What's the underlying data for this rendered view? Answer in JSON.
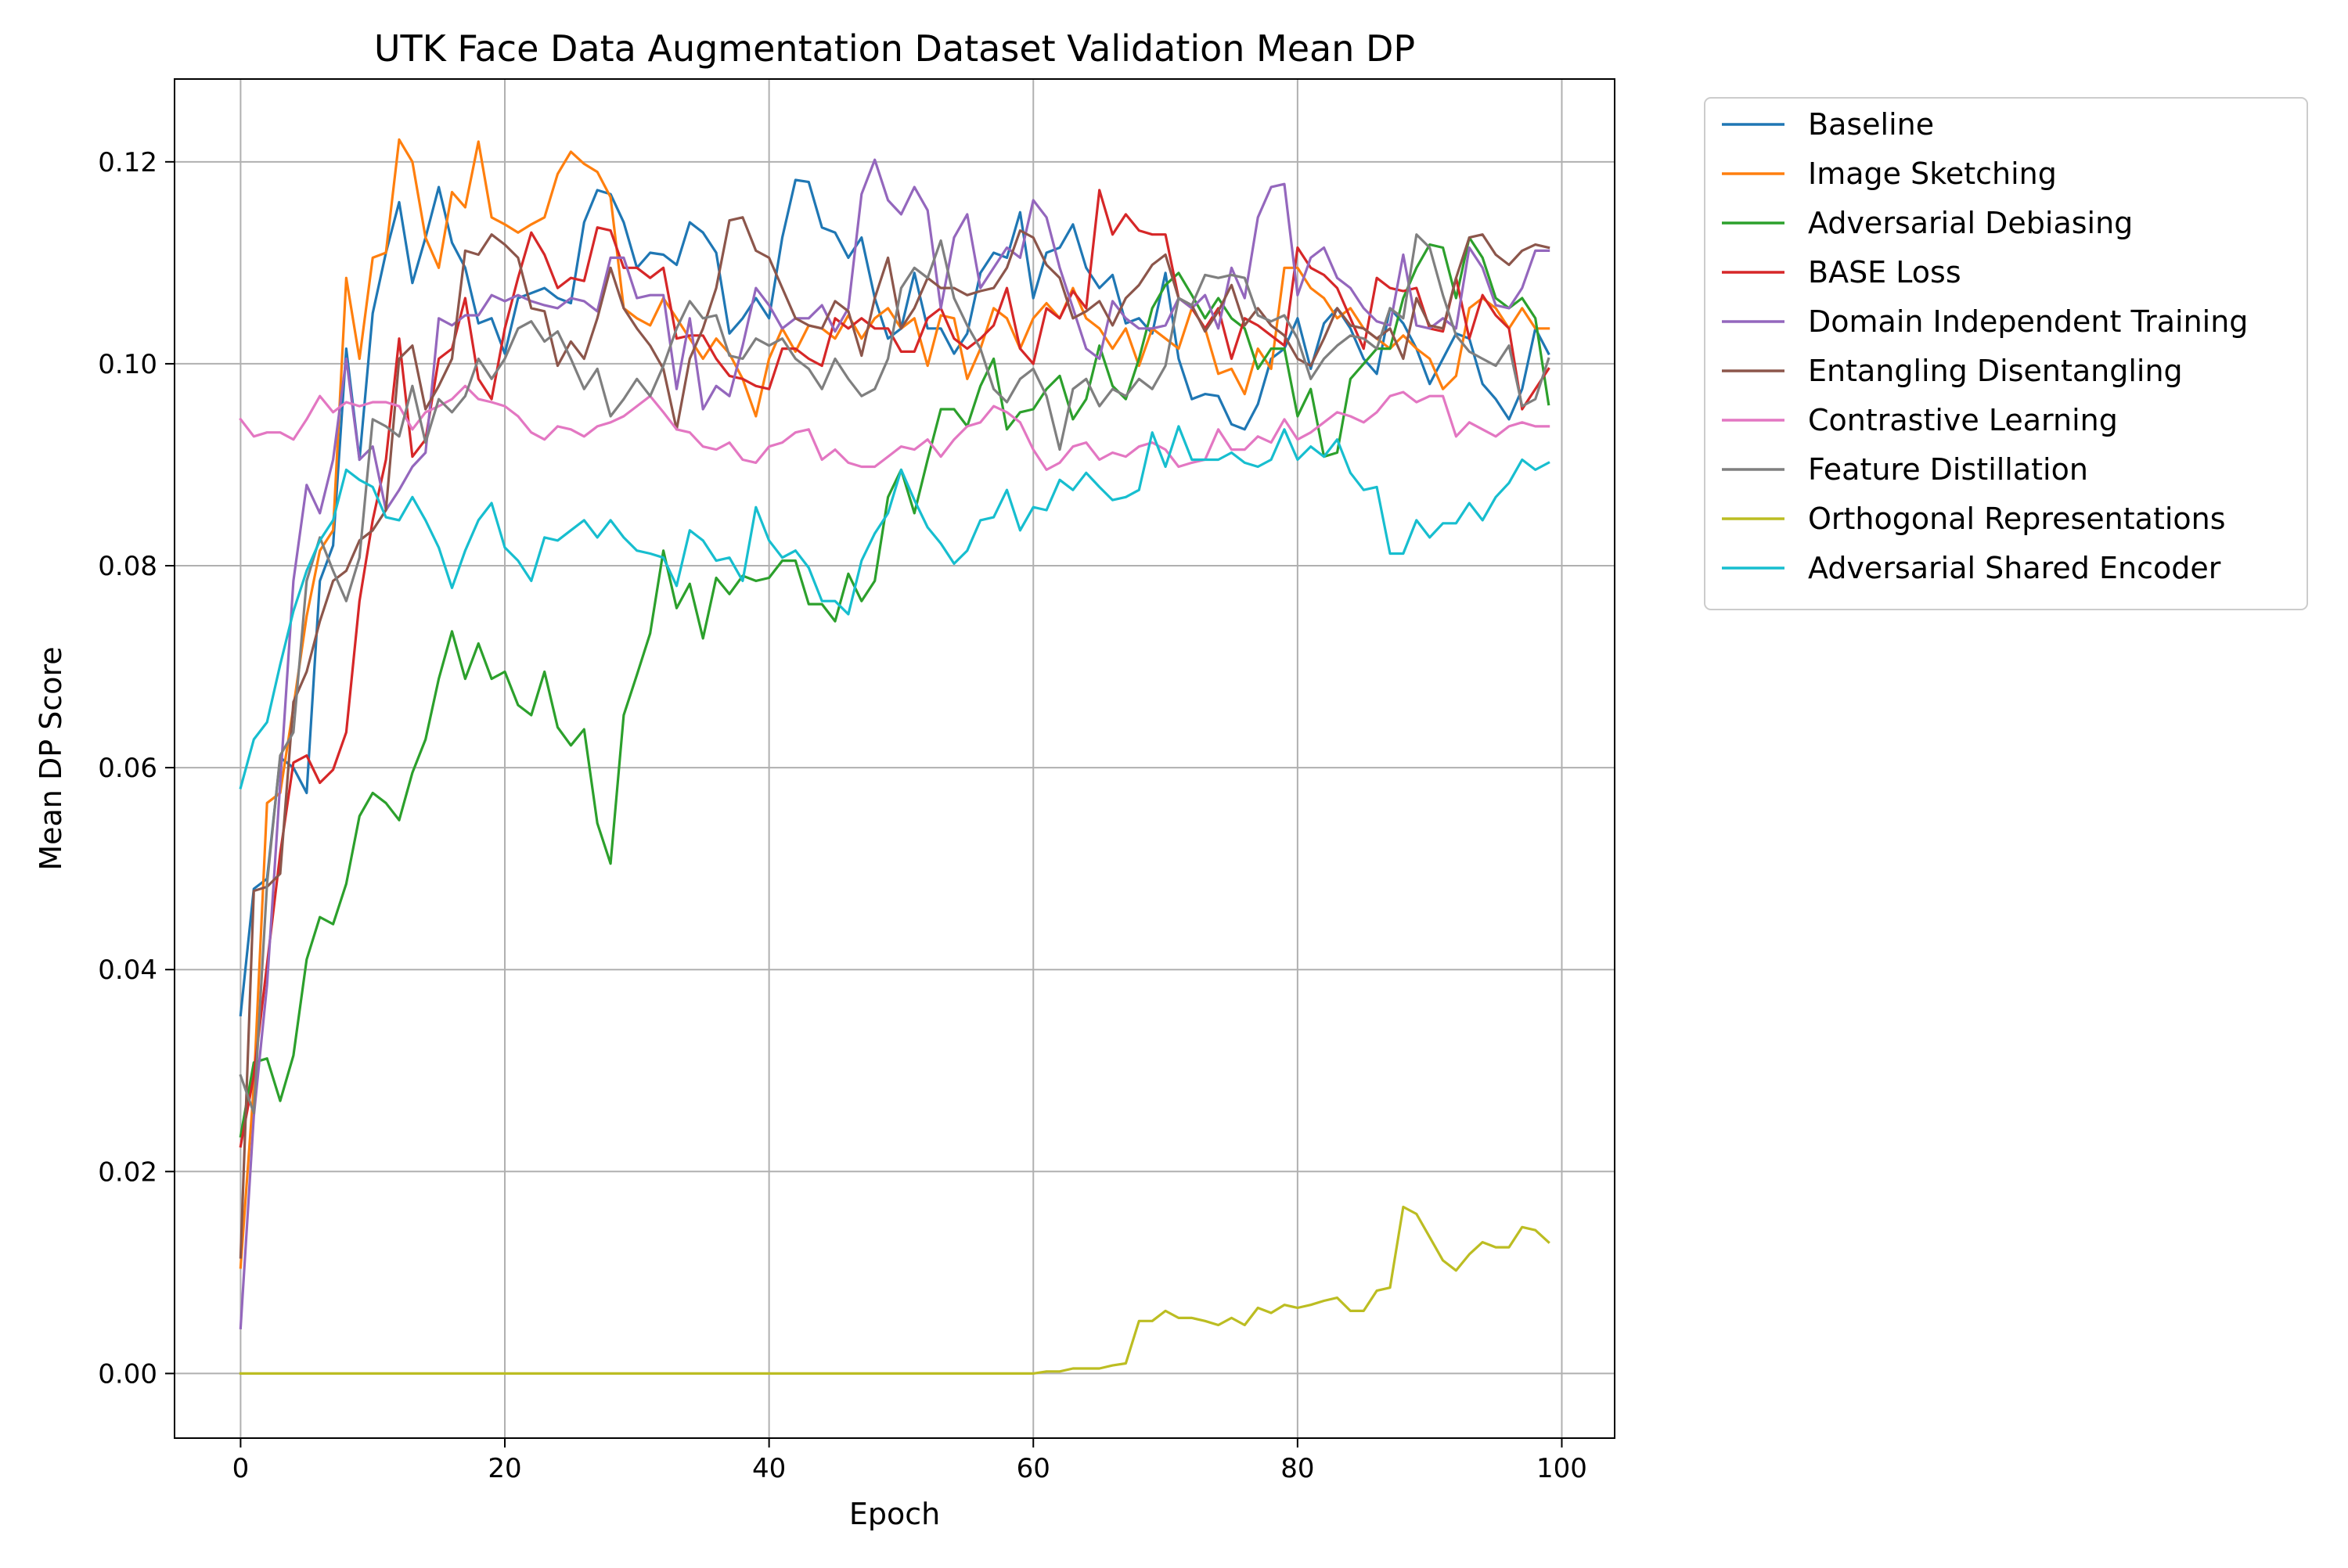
{
  "chart_data": {
    "type": "line",
    "title": "UTK Face Data Augmentation Dataset Validation Mean DP",
    "xlabel": "Epoch",
    "ylabel": "Mean DP Score",
    "xlim": [
      -5,
      104
    ],
    "ylim": [
      -0.0064,
      0.1282
    ],
    "xticks": [
      0,
      20,
      40,
      60,
      80,
      100
    ],
    "xtick_labels": [
      "0",
      "20",
      "40",
      "60",
      "80",
      "100"
    ],
    "yticks": [
      0.0,
      0.02,
      0.04,
      0.06,
      0.08,
      0.1,
      0.12
    ],
    "ytick_labels": [
      "0.00",
      "0.02",
      "0.04",
      "0.06",
      "0.08",
      "0.10",
      "0.12"
    ],
    "grid": true,
    "legend_position": "outside-top-right",
    "series": [
      {
        "name": "Baseline",
        "color": "#1f77b4",
        "values": [
          0.0355,
          0.048,
          0.049,
          0.061,
          0.06,
          0.0575,
          0.0785,
          0.082,
          0.1015,
          0.0905,
          0.105,
          0.111,
          0.116,
          0.108,
          0.1125,
          0.1175,
          0.112,
          0.1095,
          0.104,
          0.1045,
          0.101,
          0.1065,
          0.107,
          0.1075,
          0.1065,
          0.106,
          0.114,
          0.1172,
          0.1168,
          0.114,
          0.1095,
          0.111,
          0.1108,
          0.1098,
          0.114,
          0.113,
          0.111,
          0.103,
          0.1045,
          0.1065,
          0.1045,
          0.1125,
          0.1182,
          0.118,
          0.1135,
          0.113,
          0.1105,
          0.1125,
          0.1065,
          0.1025,
          0.1035,
          0.109,
          0.1035,
          0.1035,
          0.101,
          0.103,
          0.109,
          0.111,
          0.1105,
          0.115,
          0.1065,
          0.111,
          0.1115,
          0.1138,
          0.1095,
          0.1075,
          0.1088,
          0.104,
          0.1045,
          0.103,
          0.109,
          0.1005,
          0.0965,
          0.097,
          0.0968,
          0.094,
          0.0935,
          0.096,
          0.1005,
          0.1015,
          0.1045,
          0.0995,
          0.104,
          0.1055,
          0.1035,
          0.1005,
          0.099,
          0.1055,
          0.104,
          0.1015,
          0.098,
          0.1005,
          0.103,
          0.1025,
          0.098,
          0.0965,
          0.0945,
          0.0975,
          0.1035,
          0.101
        ]
      },
      {
        "name": "Image Sketching",
        "color": "#ff7f0e",
        "values": [
          0.0105,
          0.0285,
          0.0565,
          0.0575,
          0.066,
          0.075,
          0.0815,
          0.0835,
          0.1085,
          0.1005,
          0.1105,
          0.111,
          0.1222,
          0.12,
          0.1125,
          0.1095,
          0.117,
          0.1155,
          0.122,
          0.1145,
          0.1138,
          0.113,
          0.1138,
          0.1145,
          0.1188,
          0.121,
          0.1198,
          0.119,
          0.1165,
          0.1055,
          0.1045,
          0.1038,
          0.1065,
          0.1045,
          0.1025,
          0.1005,
          0.1025,
          0.101,
          0.0985,
          0.0948,
          0.1005,
          0.1035,
          0.1012,
          0.1038,
          0.1035,
          0.1025,
          0.1048,
          0.1025,
          0.1045,
          0.1055,
          0.1035,
          0.1045,
          0.0998,
          0.1048,
          0.1045,
          0.0985,
          0.1015,
          0.1055,
          0.1045,
          0.1015,
          0.1045,
          0.106,
          0.1045,
          0.1075,
          0.1045,
          0.1035,
          0.1015,
          0.1035,
          0.0998,
          0.1035,
          0.1025,
          0.1015,
          0.1055,
          0.1035,
          0.099,
          0.0995,
          0.097,
          0.1015,
          0.0995,
          0.1095,
          0.1095,
          0.1075,
          0.1065,
          0.1045,
          0.1055,
          0.1035,
          0.1025,
          0.1015,
          0.1028,
          0.1015,
          0.1005,
          0.0975,
          0.0988,
          0.1055,
          0.1065,
          0.1055,
          0.1035,
          0.1055,
          0.1035,
          0.1035
        ]
      },
      {
        "name": "Adversarial Debiasing",
        "color": "#2ca02c",
        "values": [
          0.0235,
          0.0308,
          0.0312,
          0.027,
          0.0315,
          0.041,
          0.0452,
          0.0445,
          0.0485,
          0.0552,
          0.0575,
          0.0565,
          0.0548,
          0.0595,
          0.0628,
          0.0688,
          0.0735,
          0.0688,
          0.0723,
          0.0688,
          0.0695,
          0.0662,
          0.0652,
          0.0695,
          0.064,
          0.0622,
          0.0638,
          0.0545,
          0.0505,
          0.0652,
          0.0692,
          0.0733,
          0.0815,
          0.0758,
          0.0782,
          0.0728,
          0.0788,
          0.0772,
          0.079,
          0.0785,
          0.0788,
          0.0805,
          0.0805,
          0.0762,
          0.0762,
          0.0745,
          0.0792,
          0.0765,
          0.0785,
          0.0868,
          0.0895,
          0.0852,
          0.0905,
          0.0955,
          0.0955,
          0.0938,
          0.0978,
          0.1005,
          0.0935,
          0.0952,
          0.0955,
          0.0975,
          0.0988,
          0.0945,
          0.0965,
          0.1018,
          0.0978,
          0.0965,
          0.1005,
          0.1055,
          0.1078,
          0.109,
          0.1068,
          0.1045,
          0.1065,
          0.1045,
          0.1035,
          0.0995,
          0.1015,
          0.1015,
          0.0948,
          0.0975,
          0.0908,
          0.0912,
          0.0985,
          0.1,
          0.1015,
          0.1015,
          0.1065,
          0.1095,
          0.1118,
          0.1115,
          0.1065,
          0.1125,
          0.1105,
          0.1065,
          0.1055,
          0.1065,
          0.1045,
          0.096
        ]
      },
      {
        "name": "BASE Loss",
        "color": "#d62728",
        "values": [
          0.0225,
          0.0295,
          0.0405,
          0.0515,
          0.0605,
          0.0612,
          0.0585,
          0.0598,
          0.0635,
          0.0765,
          0.0845,
          0.0905,
          0.1025,
          0.0908,
          0.0925,
          0.1005,
          0.1015,
          0.1065,
          0.0985,
          0.0965,
          0.1035,
          0.1085,
          0.113,
          0.1108,
          0.1075,
          0.1085,
          0.1082,
          0.1135,
          0.1132,
          0.1095,
          0.1095,
          0.1085,
          0.1095,
          0.1025,
          0.1028,
          0.1028,
          0.1005,
          0.0988,
          0.0985,
          0.0978,
          0.0975,
          0.1015,
          0.1015,
          0.1005,
          0.0998,
          0.1045,
          0.1035,
          0.1045,
          0.1035,
          0.1035,
          0.1012,
          0.1012,
          0.1045,
          0.1055,
          0.1025,
          0.1015,
          0.1025,
          0.1038,
          0.1075,
          0.1015,
          0.1,
          0.1055,
          0.1045,
          0.1072,
          0.1055,
          0.1172,
          0.1128,
          0.1148,
          0.1132,
          0.1128,
          0.1128,
          0.1065,
          0.1055,
          0.1035,
          0.1055,
          0.1005,
          0.1045,
          0.1038,
          0.1028,
          0.1018,
          0.1115,
          0.1095,
          0.1088,
          0.1075,
          0.1045,
          0.1015,
          0.1085,
          0.1075,
          0.1072,
          0.1075,
          0.1035,
          0.1032,
          0.1085,
          0.1025,
          0.1068,
          0.1048,
          0.1035,
          0.0955,
          0.0975,
          0.0995
        ]
      },
      {
        "name": "Domain Independent Training",
        "color": "#9467bd",
        "values": [
          0.0045,
          0.0255,
          0.0385,
          0.0585,
          0.0785,
          0.088,
          0.0852,
          0.0905,
          0.1005,
          0.0905,
          0.0918,
          0.0855,
          0.0875,
          0.0898,
          0.0912,
          0.1045,
          0.1038,
          0.1048,
          0.1048,
          0.1068,
          0.1062,
          0.1068,
          0.1062,
          0.1058,
          0.1055,
          0.1065,
          0.1062,
          0.1052,
          0.1105,
          0.1105,
          0.1065,
          0.1068,
          0.1068,
          0.0975,
          0.1045,
          0.0955,
          0.0978,
          0.0968,
          0.1018,
          0.1075,
          0.1058,
          0.1035,
          0.1045,
          0.1045,
          0.1058,
          0.1032,
          0.1055,
          0.1168,
          0.1202,
          0.1162,
          0.1148,
          0.1175,
          0.1152,
          0.1055,
          0.1125,
          0.1148,
          0.1075,
          0.1095,
          0.1115,
          0.1105,
          0.1162,
          0.1145,
          0.1095,
          0.1055,
          0.1015,
          0.1005,
          0.1062,
          0.1045,
          0.1035,
          0.1035,
          0.1038,
          0.1065,
          0.1055,
          0.1068,
          0.1035,
          0.1095,
          0.1065,
          0.1145,
          0.1175,
          0.1178,
          0.1068,
          0.1105,
          0.1115,
          0.1085,
          0.1075,
          0.1055,
          0.1042,
          0.1038,
          0.1108,
          0.1038,
          0.1035,
          0.1045,
          0.1035,
          0.1115,
          0.1095,
          0.1058,
          0.1055,
          0.1075,
          0.1112,
          0.1112
        ]
      },
      {
        "name": "Entangling Disentangling",
        "color": "#8c564b",
        "values": [
          0.0115,
          0.0478,
          0.0482,
          0.0495,
          0.0665,
          0.0695,
          0.0745,
          0.0785,
          0.0795,
          0.0825,
          0.0835,
          0.0855,
          0.1005,
          0.1018,
          0.0955,
          0.0978,
          0.1005,
          0.1112,
          0.1108,
          0.1128,
          0.1118,
          0.1105,
          0.1055,
          0.1052,
          0.0998,
          0.1022,
          0.1005,
          0.1045,
          0.1095,
          0.1055,
          0.1035,
          0.1018,
          0.0995,
          0.0935,
          0.1005,
          0.1035,
          0.1075,
          0.1142,
          0.1145,
          0.1112,
          0.1105,
          0.1075,
          0.1045,
          0.1038,
          0.1035,
          0.1062,
          0.1052,
          0.1008,
          0.1065,
          0.1105,
          0.1035,
          0.1055,
          0.1085,
          0.1075,
          0.1075,
          0.1068,
          0.1072,
          0.1075,
          0.1095,
          0.1132,
          0.1125,
          0.1098,
          0.1085,
          0.1045,
          0.1052,
          0.1062,
          0.1038,
          0.1065,
          0.1078,
          0.1098,
          0.1108,
          0.1065,
          0.1058,
          0.1032,
          0.1052,
          0.1078,
          0.1038,
          0.1055,
          0.1038,
          0.1028,
          0.1005,
          0.0998,
          0.1025,
          0.1055,
          0.1038,
          0.1035,
          0.1025,
          0.1035,
          0.1005,
          0.1065,
          0.1038,
          0.1035,
          0.1085,
          0.1125,
          0.1128,
          0.1108,
          0.1098,
          0.1112,
          0.1118,
          0.1115
        ]
      },
      {
        "name": "Contrastive Learning",
        "color": "#e377c2",
        "values": [
          0.0945,
          0.0928,
          0.0932,
          0.0932,
          0.0925,
          0.0945,
          0.0968,
          0.0952,
          0.0962,
          0.0958,
          0.0962,
          0.0962,
          0.0958,
          0.0935,
          0.0952,
          0.0958,
          0.0965,
          0.0978,
          0.0965,
          0.0962,
          0.0958,
          0.0948,
          0.0932,
          0.0925,
          0.0938,
          0.0935,
          0.0928,
          0.0938,
          0.0942,
          0.0948,
          0.0958,
          0.0968,
          0.0952,
          0.0935,
          0.0932,
          0.0918,
          0.0915,
          0.0922,
          0.0905,
          0.0902,
          0.0918,
          0.0922,
          0.0932,
          0.0935,
          0.0905,
          0.0915,
          0.0902,
          0.0898,
          0.0898,
          0.0908,
          0.0918,
          0.0915,
          0.0925,
          0.0908,
          0.0925,
          0.0938,
          0.0942,
          0.0958,
          0.0952,
          0.0942,
          0.0915,
          0.0895,
          0.0902,
          0.0918,
          0.0922,
          0.0905,
          0.0912,
          0.0908,
          0.0918,
          0.0922,
          0.0915,
          0.0898,
          0.0902,
          0.0905,
          0.0935,
          0.0915,
          0.0915,
          0.0928,
          0.0922,
          0.0945,
          0.0925,
          0.0932,
          0.0942,
          0.0952,
          0.0948,
          0.0942,
          0.0952,
          0.0968,
          0.0972,
          0.0962,
          0.0968,
          0.0968,
          0.0928,
          0.0942,
          0.0935,
          0.0928,
          0.0938,
          0.0942,
          0.0938,
          0.0938
        ]
      },
      {
        "name": "Feature Distillation",
        "color": "#7f7f7f",
        "values": [
          0.0295,
          0.0258,
          0.0485,
          0.0612,
          0.0635,
          0.0785,
          0.0828,
          0.0795,
          0.0765,
          0.0808,
          0.0945,
          0.0938,
          0.0928,
          0.0978,
          0.0922,
          0.0965,
          0.0952,
          0.0968,
          0.1005,
          0.0985,
          0.1005,
          0.1035,
          0.1042,
          0.1022,
          0.1032,
          0.1005,
          0.0975,
          0.0995,
          0.0948,
          0.0965,
          0.0985,
          0.0968,
          0.0998,
          0.1035,
          0.1062,
          0.1045,
          0.1048,
          0.1008,
          0.1005,
          0.1025,
          0.1018,
          0.1025,
          0.1005,
          0.0995,
          0.0975,
          0.1005,
          0.0985,
          0.0968,
          0.0975,
          0.1005,
          0.1075,
          0.1095,
          0.1085,
          0.1122,
          0.1065,
          0.1038,
          0.1015,
          0.0975,
          0.0962,
          0.0985,
          0.0995,
          0.0968,
          0.0915,
          0.0975,
          0.0985,
          0.0958,
          0.0975,
          0.0968,
          0.0985,
          0.0975,
          0.0998,
          0.1065,
          0.1058,
          0.1088,
          0.1085,
          0.1088,
          0.1085,
          0.1048,
          0.1042,
          0.1048,
          0.1025,
          0.0985,
          0.1005,
          0.1018,
          0.1028,
          0.1025,
          0.1015,
          0.1055,
          0.1045,
          0.1128,
          0.1115,
          0.1068,
          0.1028,
          0.1012,
          0.1005,
          0.0998,
          0.1018,
          0.0958,
          0.0965,
          0.1005
        ]
      },
      {
        "name": "Orthogonal Representations",
        "color": "#bcbd22",
        "values": [
          0.0,
          0.0,
          0.0,
          0.0,
          0.0,
          0.0,
          0.0,
          0.0,
          0.0,
          0.0,
          0.0,
          0.0,
          0.0,
          0.0,
          0.0,
          0.0,
          0.0,
          0.0,
          0.0,
          0.0,
          0.0,
          0.0,
          0.0,
          0.0,
          0.0,
          0.0,
          0.0,
          0.0,
          0.0,
          0.0,
          0.0,
          0.0,
          0.0,
          0.0,
          0.0,
          0.0,
          0.0,
          0.0,
          0.0,
          0.0,
          0.0,
          0.0,
          0.0,
          0.0,
          0.0,
          0.0,
          0.0,
          0.0,
          0.0,
          0.0,
          0.0,
          0.0,
          0.0,
          0.0,
          0.0,
          0.0,
          0.0,
          0.0,
          0.0,
          0.0,
          0.0,
          0.0002,
          0.0002,
          0.0005,
          0.0005,
          0.0005,
          0.0008,
          0.001,
          0.0052,
          0.0052,
          0.0062,
          0.0055,
          0.0055,
          0.0052,
          0.0048,
          0.0055,
          0.0048,
          0.0065,
          0.006,
          0.0068,
          0.0065,
          0.0068,
          0.0072,
          0.0075,
          0.0062,
          0.0062,
          0.0082,
          0.0085,
          0.0165,
          0.0158,
          0.0135,
          0.0112,
          0.0102,
          0.0118,
          0.013,
          0.0125,
          0.0125,
          0.0145,
          0.0142,
          0.013
        ]
      },
      {
        "name": "Adversarial Shared Encoder",
        "color": "#17becf",
        "values": [
          0.058,
          0.0628,
          0.0645,
          0.0702,
          0.0755,
          0.0795,
          0.0825,
          0.0845,
          0.0895,
          0.0885,
          0.0878,
          0.0848,
          0.0845,
          0.0868,
          0.0845,
          0.0818,
          0.0778,
          0.0815,
          0.0845,
          0.0862,
          0.0818,
          0.0805,
          0.0785,
          0.0828,
          0.0825,
          0.0835,
          0.0845,
          0.0828,
          0.0845,
          0.0828,
          0.0815,
          0.0812,
          0.0808,
          0.078,
          0.0835,
          0.0825,
          0.0805,
          0.0808,
          0.0785,
          0.0858,
          0.0825,
          0.0808,
          0.0815,
          0.0798,
          0.0765,
          0.0765,
          0.0752,
          0.0805,
          0.0832,
          0.0852,
          0.0895,
          0.0865,
          0.0838,
          0.0822,
          0.0802,
          0.0815,
          0.0845,
          0.0848,
          0.0875,
          0.0835,
          0.0858,
          0.0855,
          0.0885,
          0.0875,
          0.0892,
          0.0878,
          0.0865,
          0.0868,
          0.0875,
          0.0932,
          0.0898,
          0.0938,
          0.0905,
          0.0905,
          0.0905,
          0.0912,
          0.0902,
          0.0898,
          0.0905,
          0.0935,
          0.0905,
          0.0918,
          0.0908,
          0.0925,
          0.0892,
          0.0875,
          0.0878,
          0.0812,
          0.0812,
          0.0845,
          0.0828,
          0.0842,
          0.0842,
          0.0862,
          0.0845,
          0.0868,
          0.0882,
          0.0905,
          0.0895,
          0.0902
        ]
      }
    ]
  }
}
